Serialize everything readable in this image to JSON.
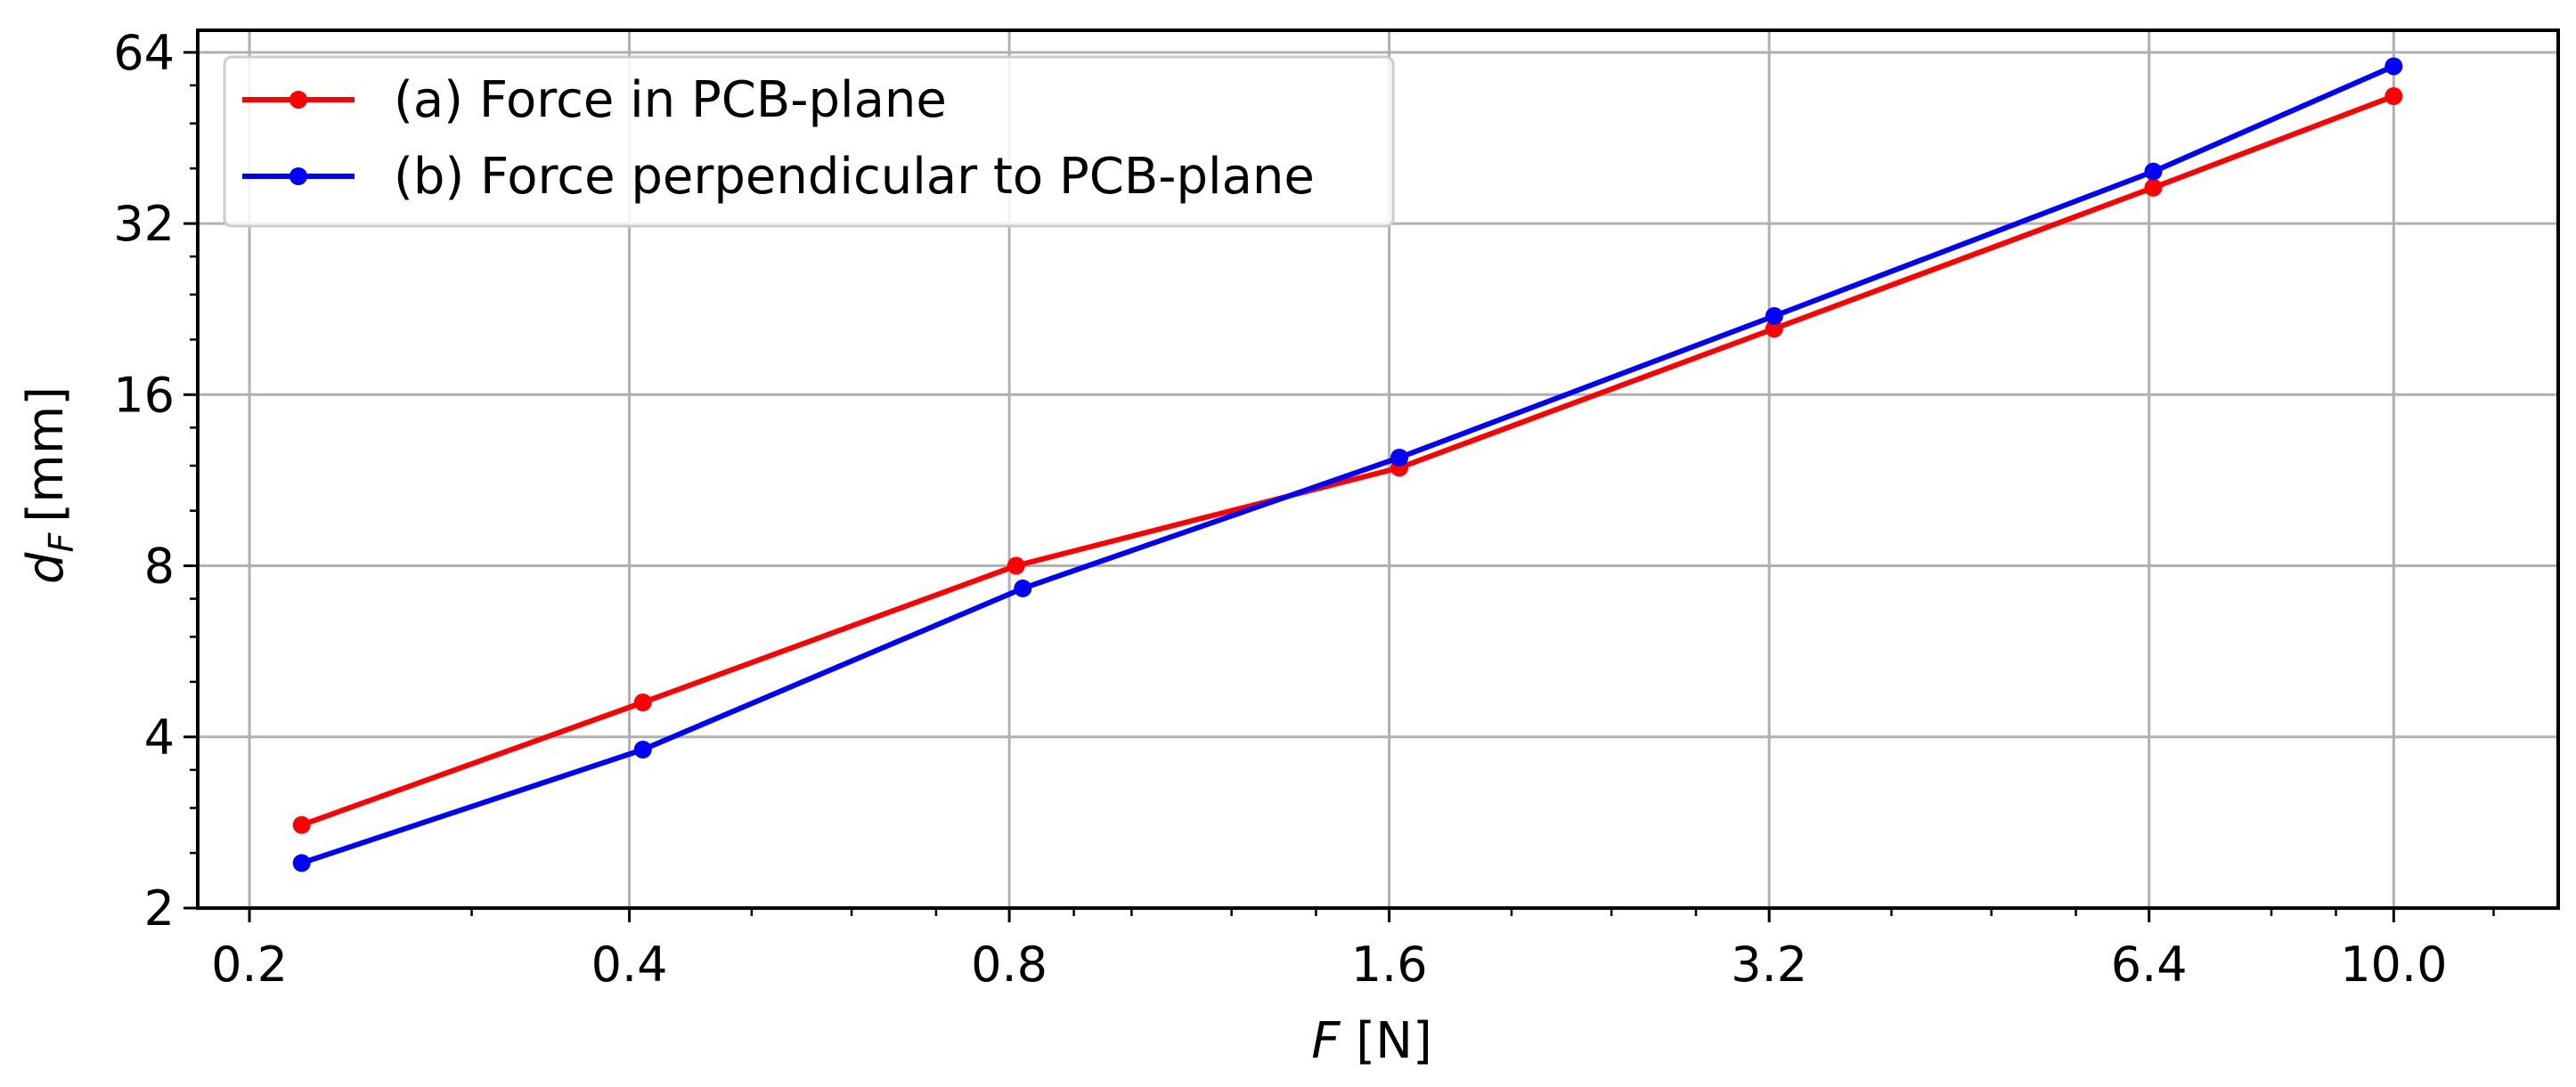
{
  "chart_data": {
    "type": "line",
    "xlabel": "F [N]",
    "xlabel_var": "F",
    "xlabel_unit": "[N]",
    "ylabel": "d_F [mm]",
    "ylabel_var": "d",
    "ylabel_sub": "F",
    "ylabel_unit": "[mm]",
    "x_scale": "log2",
    "y_scale": "log2",
    "xlim": [
      0.182,
      13.5
    ],
    "ylim": [
      2,
      70
    ],
    "x_ticks": [
      0.2,
      0.4,
      0.8,
      1.6,
      3.2,
      6.4,
      10.0
    ],
    "x_tick_labels": [
      "0.2",
      "0.4",
      "0.8",
      "1.6",
      "3.2",
      "6.4",
      "10.0"
    ],
    "y_ticks": [
      2,
      4,
      8,
      16,
      32,
      64
    ],
    "y_tick_labels": [
      "2",
      "4",
      "8",
      "16",
      "32",
      "64"
    ],
    "grid": true,
    "legend_position": "top-left",
    "series": [
      {
        "name": "(a) Force in PCB-plane",
        "color": "#ff0000",
        "x": [
          0.22,
          0.41,
          0.81,
          1.63,
          3.23,
          6.45,
          10.0
        ],
        "y": [
          2.8,
          4.6,
          8.0,
          11.9,
          20.9,
          37.0,
          53.6
        ]
      },
      {
        "name": "(b) Force perpendicular to PCB-plane",
        "color": "#0000ff",
        "x": [
          0.22,
          0.41,
          0.82,
          1.63,
          3.23,
          6.45,
          10.0
        ],
        "y": [
          2.4,
          3.8,
          7.3,
          12.4,
          22.0,
          39.5,
          60.5
        ]
      }
    ]
  }
}
